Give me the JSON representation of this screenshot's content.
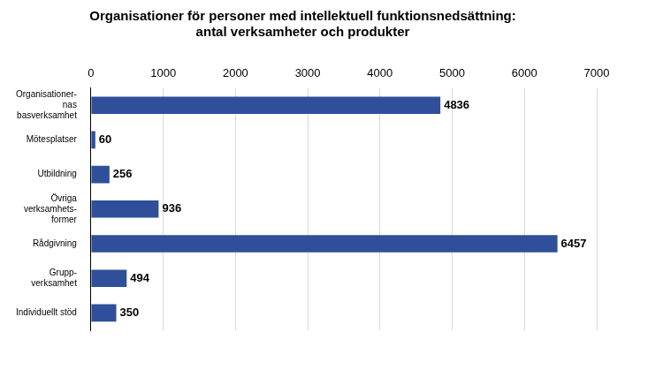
{
  "chart_data": {
    "type": "bar",
    "orientation": "horizontal",
    "title": [
      "Organisationer för personer med intellektuell funktionsnedsättning:",
      "antal verksamheter och produkter"
    ],
    "categories": [
      [
        "Organisationer-",
        "nas",
        "basverksamhet"
      ],
      "Mötesplatser",
      "Utbildning",
      [
        "Övriga",
        "verksamhets-",
        "former"
      ],
      "Rådgivning",
      [
        "Grupp-",
        "verksamhet"
      ],
      "Individuellt stöd"
    ],
    "values": [
      4836,
      60,
      256,
      936,
      6457,
      494,
      350
    ],
    "color": "#2f4f9a",
    "xlim": [
      0,
      7000
    ],
    "xticks": [
      0,
      1000,
      2000,
      3000,
      4000,
      5000,
      6000,
      7000
    ],
    "grid": true,
    "data_labels": true
  }
}
